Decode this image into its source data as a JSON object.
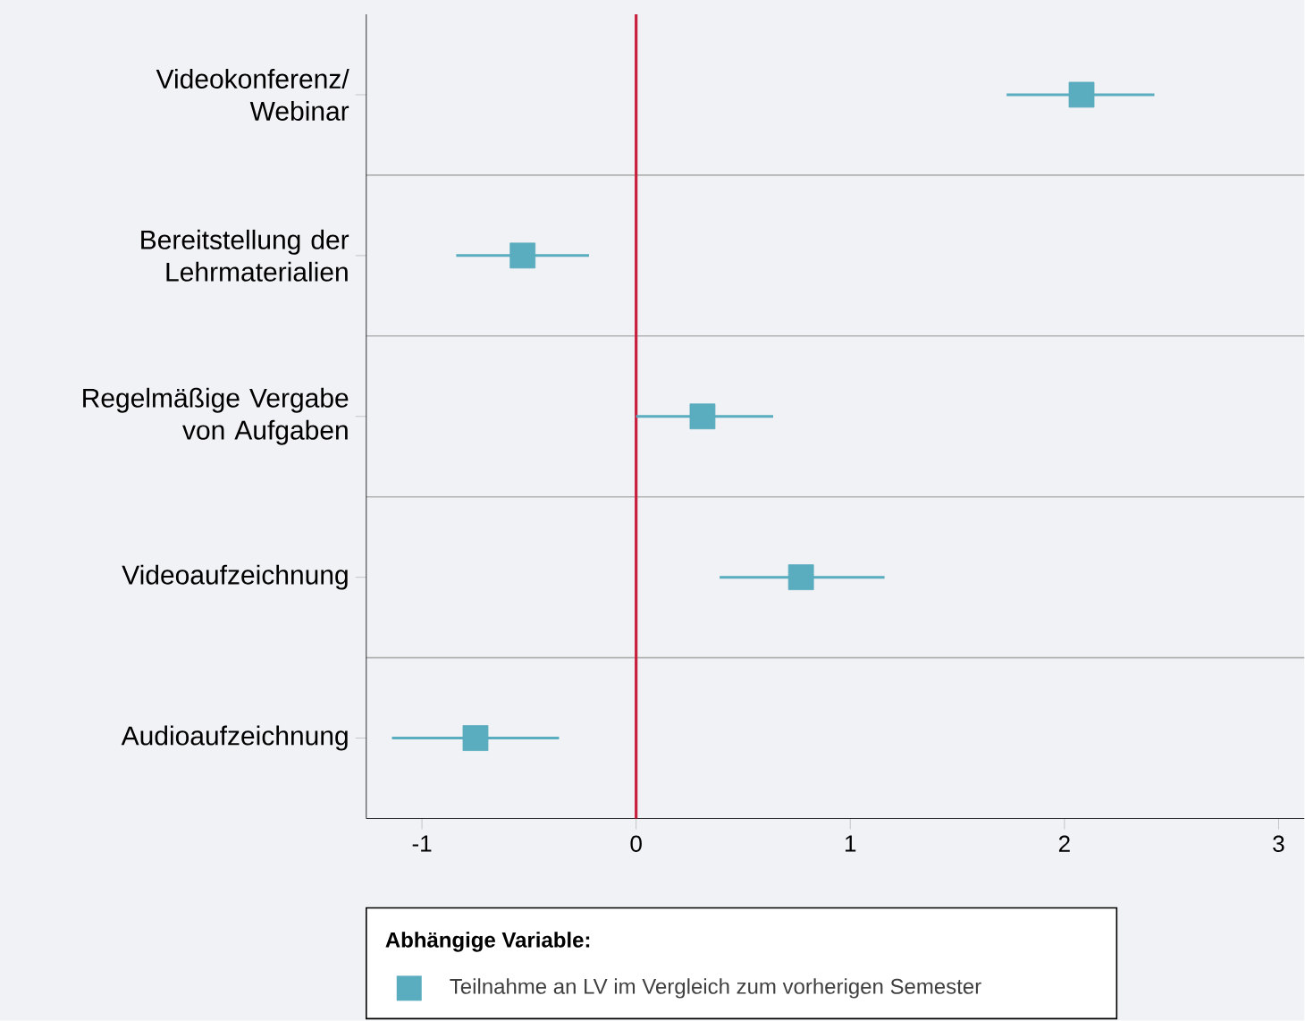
{
  "chart_data": {
    "type": "scatter",
    "orientation": "horizontal",
    "categories": [
      "Videokonferenz/ Webinar",
      "Bereitstellung der Lehrmaterialien",
      "Regelmäßige Vergabe von Aufgaben",
      "Videoaufzeichnung",
      "Audioaufzeichnung"
    ],
    "series": [
      {
        "name": "Teilnahme an LV im Vergleich zum vorherigen Semester",
        "color": "#5aacbf",
        "values": [
          2.08,
          -0.53,
          0.31,
          0.77,
          -0.75
        ],
        "errors": [
          [
            1.73,
            2.42
          ],
          [
            -0.84,
            -0.22
          ],
          [
            0.0,
            0.64
          ],
          [
            0.39,
            1.16
          ],
          [
            -1.14,
            -0.36
          ]
        ]
      }
    ],
    "legend_title": "Abhängige Variable:",
    "legend": "bottom",
    "marker": "square",
    "xlim": [
      -1.26,
      3.12
    ],
    "xticks": [
      -1,
      0,
      1,
      2,
      3
    ],
    "ref_lines": [
      {
        "axis": "x",
        "value": 0,
        "color": "#c8203c"
      }
    ],
    "grid": "y"
  }
}
